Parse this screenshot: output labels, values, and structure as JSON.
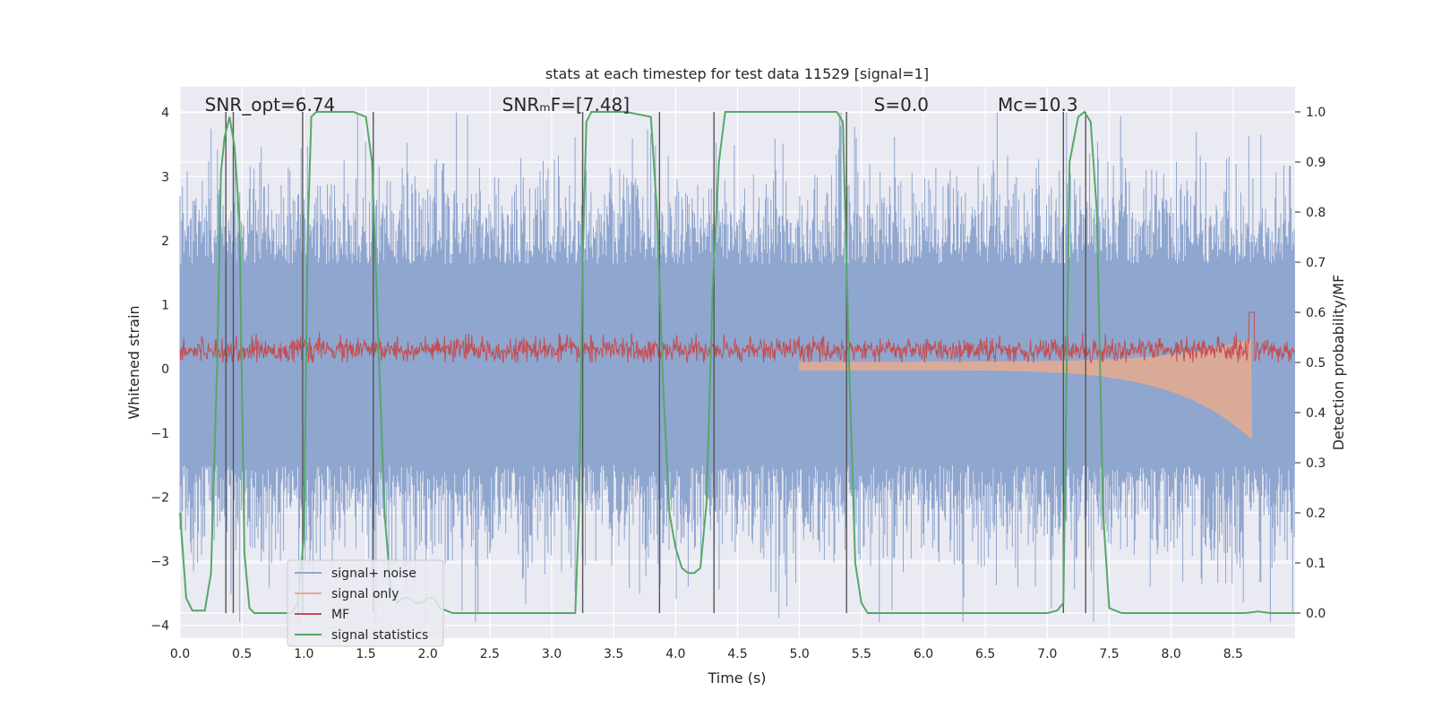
{
  "chart_data": {
    "type": "line",
    "title": "stats at each timestep for test data 11529 [signal=1]",
    "xlabel": "Time (s)",
    "ylabel_left": "Whitened strain",
    "ylabel_right": "Detection probability/MF",
    "xlim": [
      0,
      9.0
    ],
    "ylim_left": [
      -4.2,
      4.4
    ],
    "ylim_right": [
      -0.05,
      1.05
    ],
    "x_ticks": [
      "0.0",
      "0.5",
      "1.0",
      "1.5",
      "2.0",
      "2.5",
      "3.0",
      "3.5",
      "4.0",
      "4.5",
      "5.0",
      "5.5",
      "6.0",
      "6.5",
      "7.0",
      "7.5",
      "8.0",
      "8.5"
    ],
    "x_tick_values": [
      0,
      0.5,
      1.0,
      1.5,
      2.0,
      2.5,
      3.0,
      3.5,
      4.0,
      4.5,
      5.0,
      5.5,
      6.0,
      6.5,
      7.0,
      7.5,
      8.0,
      8.5
    ],
    "y_left_ticks": [
      "4",
      "3",
      "2",
      "1",
      "0",
      "−1",
      "−2",
      "−3",
      "−4"
    ],
    "y_left_tick_values": [
      4,
      3,
      2,
      1,
      0,
      -1,
      -2,
      -3,
      -4
    ],
    "y_right_ticks": [
      "1.0",
      "0.9",
      "0.8",
      "0.7",
      "0.6",
      "0.5",
      "0.4",
      "0.3",
      "0.2",
      "0.1",
      "0.0"
    ],
    "y_right_tick_values": [
      1.0,
      0.9,
      0.8,
      0.7,
      0.6,
      0.5,
      0.4,
      0.3,
      0.2,
      0.1,
      0.0
    ],
    "annotations": [
      {
        "id": "snr-opt",
        "text": "SNR_opt=6.74",
        "x": 0.2,
        "y": 4.05
      },
      {
        "id": "snr-mf",
        "text": "SNRₘF=[7.48]",
        "x": 2.6,
        "y": 4.05
      },
      {
        "id": "s-value",
        "text": "S=0.0",
        "x": 5.6,
        "y": 4.05
      },
      {
        "id": "mc-value",
        "text": "Mᴄ=10.3",
        "x": 6.6,
        "y": 4.05
      }
    ],
    "vertical_lines": [
      0.37,
      0.43,
      0.99,
      1.56,
      3.25,
      3.87,
      4.31,
      5.38,
      7.13,
      7.31
    ],
    "legend": {
      "placement": "lower-left",
      "entries": [
        {
          "label": "signal+ noise",
          "color": "#8fa6cf"
        },
        {
          "label": "signal only",
          "color": "#e7aa8f"
        },
        {
          "label": "MF",
          "color": "#c44e52"
        },
        {
          "label": "signal statistics",
          "color": "#55a868"
        }
      ]
    },
    "series": [
      {
        "name": "signal statistics",
        "axis": "right",
        "color": "#55a868",
        "x": [
          0.0,
          0.05,
          0.1,
          0.15,
          0.2,
          0.25,
          0.3,
          0.33,
          0.36,
          0.4,
          0.44,
          0.48,
          0.52,
          0.56,
          0.6,
          0.7,
          0.8,
          0.9,
          0.95,
          1.0,
          1.03,
          1.06,
          1.1,
          1.2,
          1.4,
          1.5,
          1.55,
          1.6,
          1.65,
          1.7,
          1.75,
          1.8,
          1.85,
          1.9,
          1.95,
          2.0,
          2.05,
          2.1,
          2.2,
          2.4,
          2.6,
          2.8,
          3.0,
          3.19,
          3.22,
          3.25,
          3.28,
          3.32,
          3.4,
          3.6,
          3.8,
          3.85,
          3.9,
          3.95,
          4.0,
          4.05,
          4.1,
          4.15,
          4.2,
          4.25,
          4.3,
          4.35,
          4.4,
          4.6,
          5.0,
          5.3,
          5.35,
          5.4,
          5.45,
          5.5,
          5.55,
          5.6,
          5.7,
          6.0,
          6.5,
          7.0,
          7.08,
          7.13,
          7.18,
          7.25,
          7.3,
          7.35,
          7.4,
          7.45,
          7.5,
          7.6,
          8.0,
          8.3,
          8.6,
          8.7,
          8.8,
          9.0
        ],
        "values": [
          0.2,
          0.03,
          0.005,
          0.005,
          0.005,
          0.08,
          0.5,
          0.88,
          0.95,
          0.99,
          0.93,
          0.78,
          0.12,
          0.01,
          0.0,
          0.0,
          0.0,
          0.0,
          0.02,
          0.15,
          0.75,
          0.99,
          1.0,
          1.0,
          1.0,
          0.99,
          0.9,
          0.55,
          0.2,
          0.05,
          0.02,
          0.03,
          0.03,
          0.02,
          0.02,
          0.03,
          0.03,
          0.01,
          0.0,
          0.0,
          0.0,
          0.0,
          0.0,
          0.0,
          0.2,
          0.7,
          0.98,
          1.0,
          1.0,
          1.0,
          0.99,
          0.8,
          0.45,
          0.2,
          0.13,
          0.09,
          0.08,
          0.08,
          0.09,
          0.22,
          0.65,
          0.9,
          1.0,
          1.0,
          1.0,
          1.0,
          0.98,
          0.5,
          0.1,
          0.02,
          0.0,
          0.0,
          0.0,
          0.0,
          0.0,
          0.0,
          0.005,
          0.02,
          0.9,
          0.99,
          1.0,
          0.98,
          0.8,
          0.2,
          0.01,
          0.0,
          0.0,
          0.0,
          0.0,
          0.003,
          0.0,
          0.0
        ]
      }
    ],
    "background_series": [
      {
        "name": "signal+ noise",
        "axis": "left",
        "color": "#8fa6cf",
        "description": "dense noisy strain time series between approx -4 and 4"
      },
      {
        "name": "signal only",
        "axis": "left",
        "color": "#e7aa8f",
        "description": "chirp waveform growing towards 8.65 s"
      },
      {
        "name": "MF",
        "axis": "right",
        "color": "#c44e52",
        "description": "matched filter output near 0.5 with peak near 8.65 s"
      }
    ]
  }
}
